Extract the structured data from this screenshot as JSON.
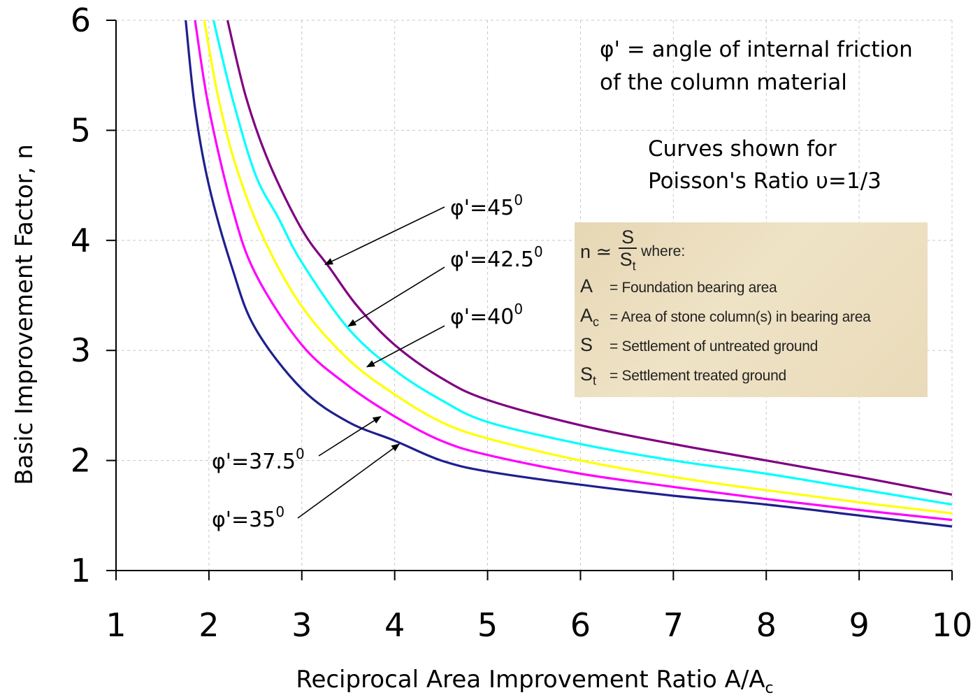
{
  "chart_data": {
    "type": "line",
    "xlabel": "Reciprocal Area Improvement Ratio A/A",
    "xlabel_sub": "c",
    "ylabel": "Basic Improvement Factor, n",
    "xlim": [
      1,
      10
    ],
    "ylim": [
      1,
      6
    ],
    "x_ticks": [
      "1",
      "2",
      "3",
      "4",
      "5",
      "6",
      "7",
      "8",
      "9",
      "10"
    ],
    "y_ticks": [
      "1",
      "2",
      "3",
      "4",
      "5",
      "6"
    ],
    "grid": "dashed horizontal and vertical",
    "series": [
      {
        "name": "φ'=35",
        "color": "#1f1f8f",
        "points": [
          [
            1.75,
            6.0
          ],
          [
            1.85,
            5.2
          ],
          [
            2.0,
            4.5
          ],
          [
            2.25,
            3.75
          ],
          [
            2.5,
            3.2
          ],
          [
            3.0,
            2.65
          ],
          [
            3.5,
            2.35
          ],
          [
            4.0,
            2.18
          ],
          [
            4.5,
            2.0
          ],
          [
            5.0,
            1.9
          ],
          [
            6.0,
            1.78
          ],
          [
            7.0,
            1.68
          ],
          [
            8.0,
            1.6
          ],
          [
            9.0,
            1.5
          ],
          [
            10.0,
            1.4
          ]
        ]
      },
      {
        "name": "φ'=37.5",
        "color": "#ff00ff",
        "points": [
          [
            1.85,
            6.0
          ],
          [
            2.0,
            5.2
          ],
          [
            2.25,
            4.3
          ],
          [
            2.5,
            3.7
          ],
          [
            3.0,
            3.05
          ],
          [
            3.5,
            2.68
          ],
          [
            4.0,
            2.4
          ],
          [
            4.5,
            2.18
          ],
          [
            5.0,
            2.05
          ],
          [
            6.0,
            1.88
          ],
          [
            7.0,
            1.76
          ],
          [
            8.0,
            1.65
          ],
          [
            9.0,
            1.55
          ],
          [
            10.0,
            1.46
          ]
        ]
      },
      {
        "name": "φ'=40",
        "color": "#ffff00",
        "points": [
          [
            1.95,
            6.0
          ],
          [
            2.1,
            5.3
          ],
          [
            2.3,
            4.65
          ],
          [
            2.6,
            4.0
          ],
          [
            3.0,
            3.4
          ],
          [
            3.5,
            2.92
          ],
          [
            4.0,
            2.6
          ],
          [
            4.5,
            2.35
          ],
          [
            5.0,
            2.2
          ],
          [
            6.0,
            2.0
          ],
          [
            7.0,
            1.85
          ],
          [
            8.0,
            1.73
          ],
          [
            9.0,
            1.62
          ],
          [
            10.0,
            1.52
          ]
        ]
      },
      {
        "name": "φ'=42.5",
        "color": "#00ffff",
        "points": [
          [
            2.05,
            6.0
          ],
          [
            2.25,
            5.3
          ],
          [
            2.5,
            4.6
          ],
          [
            2.75,
            4.2
          ],
          [
            3.0,
            3.8
          ],
          [
            3.5,
            3.2
          ],
          [
            4.0,
            2.82
          ],
          [
            4.5,
            2.55
          ],
          [
            5.0,
            2.35
          ],
          [
            6.0,
            2.15
          ],
          [
            7.0,
            2.0
          ],
          [
            8.0,
            1.88
          ],
          [
            9.0,
            1.74
          ],
          [
            10.0,
            1.6
          ]
        ]
      },
      {
        "name": "φ'=45",
        "color": "#800080",
        "points": [
          [
            2.2,
            6.0
          ],
          [
            2.4,
            5.3
          ],
          [
            2.65,
            4.7
          ],
          [
            3.0,
            4.1
          ],
          [
            3.3,
            3.75
          ],
          [
            3.6,
            3.4
          ],
          [
            4.0,
            3.05
          ],
          [
            4.5,
            2.75
          ],
          [
            5.0,
            2.55
          ],
          [
            6.0,
            2.32
          ],
          [
            7.0,
            2.15
          ],
          [
            8.0,
            2.0
          ],
          [
            9.0,
            1.85
          ],
          [
            10.0,
            1.69
          ]
        ]
      }
    ],
    "annotations": {
      "friction_line1": "φ' = angle of internal friction",
      "friction_line2": "of the column material",
      "poisson_line1": "Curves shown for",
      "poisson_line2": "Poisson's Ratio υ=1/3"
    },
    "callouts": [
      {
        "base": "φ'=45",
        "sup": "0",
        "target": [
          3.25,
          3.78
        ]
      },
      {
        "base": "φ'=42.5",
        "sup": "0",
        "target": [
          3.5,
          3.22
        ]
      },
      {
        "base": "φ'=40",
        "sup": "0",
        "target": [
          3.7,
          2.85
        ]
      },
      {
        "base": "φ'=37.5",
        "sup": "0",
        "target": [
          3.85,
          2.4
        ]
      },
      {
        "base": "φ'=35",
        "sup": "0",
        "target": [
          4.05,
          2.15
        ]
      }
    ]
  },
  "legend_box": {
    "formula_lhs": "n ≃",
    "formula_num": "S",
    "formula_den": "S",
    "formula_den_sub": "t",
    "formula_where": "where:",
    "rows": [
      {
        "sym": "A",
        "sub": "",
        "desc": "= Foundation bearing area"
      },
      {
        "sym": "A",
        "sub": "c",
        "desc": "= Area of stone column(s) in bearing area"
      },
      {
        "sym": "S",
        "sub": "",
        "desc": "= Settlement of untreated ground"
      },
      {
        "sym": "S",
        "sub": "t",
        "desc": "= Settlement treated ground"
      }
    ]
  }
}
